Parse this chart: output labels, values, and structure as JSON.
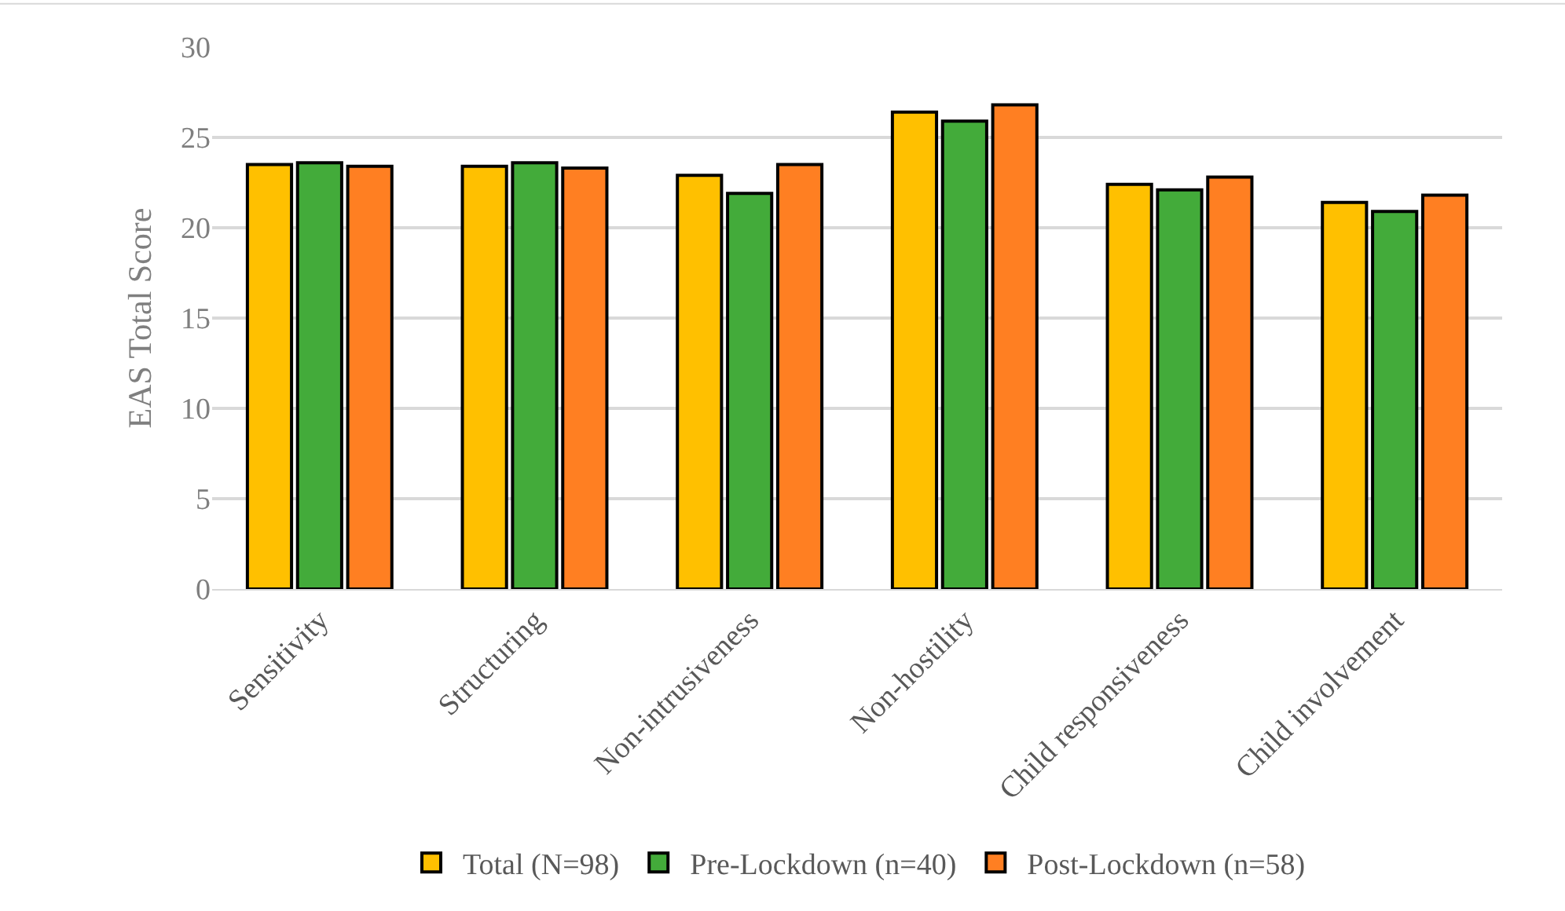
{
  "chart_data": {
    "type": "bar",
    "ylabel": "EAS Total Score",
    "categories": [
      "Sensitivity",
      "Structuring",
      "Non-intrusiveness",
      "Non-hostility",
      "Child responsiveness",
      "Child involvement"
    ],
    "series": [
      {
        "name": "Total (N=98)",
        "color": "#ffc000",
        "values": [
          23.5,
          23.4,
          22.9,
          26.4,
          22.4,
          21.4
        ]
      },
      {
        "name": "Pre-Lockdown (n=40)",
        "color": "#43ab3a",
        "values": [
          23.6,
          23.6,
          21.9,
          25.9,
          22.1,
          20.9
        ]
      },
      {
        "name": "Post-Lockdown (n=58)",
        "color": "#ff7f22",
        "values": [
          23.4,
          23.3,
          23.5,
          26.8,
          22.8,
          21.8
        ]
      }
    ],
    "ylim": [
      0,
      30
    ],
    "yticks": [
      0,
      5,
      10,
      15,
      20,
      25,
      30
    ],
    "grid": "y",
    "legend": "bottom"
  }
}
